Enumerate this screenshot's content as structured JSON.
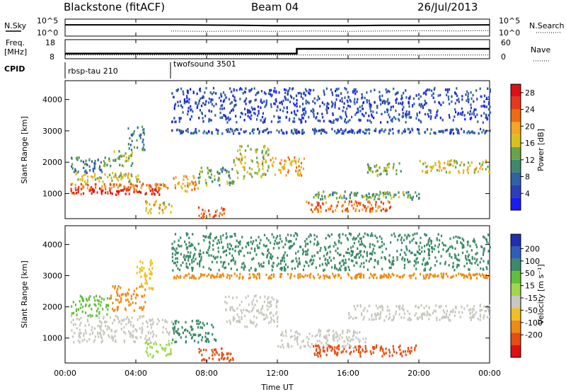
{
  "header": {
    "station": "Blackstone (fitACF)",
    "beam": "Beam 04",
    "date": "26/Jul/2013"
  },
  "top_panel": {
    "nsky_label": "N.Sky",
    "nsky_ticks": [
      "10^5",
      "10^0"
    ],
    "nsearch_label": "N.Search",
    "nsearch_ticks": [
      "10^5",
      "10^0"
    ]
  },
  "freq_panel": {
    "freq_label": "Freq.",
    "freq_unit": "[MHz]",
    "freq_ticks": [
      "18",
      "8"
    ],
    "nave_label": "Nave",
    "nave_ticks": [
      "60",
      "0"
    ]
  },
  "cpid": {
    "label": "CPID",
    "modes": [
      {
        "name": "rbsp-tau 210",
        "start_hour": 0
      },
      {
        "name": "twofsound 3501",
        "start_hour": 5.9
      }
    ]
  },
  "colors": {
    "power": [
      "#1a1aff",
      "#2a3fb8",
      "#2f62a6",
      "#3f8870",
      "#6aa34a",
      "#d6c21a",
      "#f5a623",
      "#ee6b12",
      "#e8381a",
      "#e01010"
    ],
    "velocity": [
      "#1f2fb3",
      "#2e5fb8",
      "#3c8a6a",
      "#5fbf3a",
      "#9fd64a",
      "#c8c8c0",
      "#f0c020",
      "#f08a12",
      "#e84c12",
      "#e01010"
    ]
  },
  "chart_data": [
    {
      "type": "line",
      "title": "N.Sky / N.Search",
      "x_range_hours": [
        0,
        24
      ],
      "y_scale": "log",
      "y_ticks": [
        "10^0",
        "10^5"
      ],
      "series": [
        {
          "name": "N.Sky",
          "x": [
            0,
            2,
            4,
            6,
            8,
            10,
            12,
            14,
            16,
            18,
            20,
            22,
            24
          ],
          "y": [
            3000,
            3000,
            3000,
            3000,
            2500,
            2000,
            1500,
            1500,
            1500,
            2000,
            2000,
            2500,
            3000
          ]
        },
        {
          "name": "N.Search",
          "x": [
            6,
            8,
            10,
            12,
            14,
            16,
            18,
            20,
            22,
            24
          ],
          "y": [
            20,
            15,
            20,
            15,
            20,
            15,
            20,
            25,
            20,
            30
          ]
        }
      ]
    },
    {
      "type": "line",
      "title": "Freq / Nave",
      "x_range_hours": [
        0,
        24
      ],
      "series": [
        {
          "name": "Freq. [MHz]",
          "x": [
            0,
            13.1,
            13.1,
            24
          ],
          "y": [
            10.5,
            10.5,
            13.2,
            13.2
          ]
        },
        {
          "name": "Nave",
          "x": [
            0,
            24
          ],
          "y": [
            10,
            10
          ]
        }
      ],
      "ylim_left": [
        8,
        18
      ],
      "ylim_right": [
        0,
        60
      ]
    },
    {
      "type": "heatmap",
      "title": "Power",
      "xlabel": "",
      "ylabel": "Slant Range [km]",
      "x_range_hours": [
        0,
        24
      ],
      "ylim": [
        200,
        4600
      ],
      "y_ticks": [
        1000,
        2000,
        3000,
        4000
      ],
      "colorbar_label": "Power [dB]",
      "colorbar_ticks": [
        4,
        8,
        12,
        16,
        20,
        24,
        28
      ],
      "colorbar_range": [
        0,
        30
      ],
      "bands": [
        {
          "x": [
            0.3,
            5.5
          ],
          "y": [
            1000,
            1200
          ],
          "value": 27
        },
        {
          "x": [
            0.3,
            5.8
          ],
          "y": [
            1200,
            1350
          ],
          "value": 22
        },
        {
          "x": [
            0.5,
            4.2
          ],
          "y": [
            1400,
            1700
          ],
          "value": 17
        },
        {
          "x": [
            0.3,
            2.2
          ],
          "y": [
            1700,
            2200
          ],
          "value": 9
        },
        {
          "x": [
            2.2,
            3.8
          ],
          "y": [
            1900,
            2400
          ],
          "value": 14
        },
        {
          "x": [
            3.5,
            4.5
          ],
          "y": [
            2400,
            3200
          ],
          "value": 10
        },
        {
          "x": [
            4.5,
            6.0
          ],
          "y": [
            400,
            800
          ],
          "value": 18
        },
        {
          "x": [
            6.0,
            7.5
          ],
          "y": [
            1100,
            1600
          ],
          "value": 20
        },
        {
          "x": [
            7.5,
            9.5
          ],
          "y": [
            1300,
            1900
          ],
          "value": 12
        },
        {
          "x": [
            7.5,
            9.0
          ],
          "y": [
            250,
            600
          ],
          "value": 24
        },
        {
          "x": [
            9.5,
            11.5
          ],
          "y": [
            1500,
            2600
          ],
          "value": 15
        },
        {
          "x": [
            11.5,
            13.5
          ],
          "y": [
            1600,
            2200
          ],
          "value": 19
        },
        {
          "x": [
            13.5,
            18.5
          ],
          "y": [
            450,
            800
          ],
          "value": 23
        },
        {
          "x": [
            14.0,
            20.0
          ],
          "y": [
            850,
            1100
          ],
          "value": 12
        },
        {
          "x": [
            17.0,
            19.0
          ],
          "y": [
            1600,
            2000
          ],
          "value": 14
        },
        {
          "x": [
            20.0,
            24.0
          ],
          "y": [
            1700,
            2100
          ],
          "value": 17
        },
        {
          "x": [
            6.0,
            24.0
          ],
          "y": [
            2950,
            3100
          ],
          "value": 6
        },
        {
          "x": [
            6.0,
            24.0
          ],
          "y": [
            3300,
            4400
          ],
          "value": 5
        }
      ]
    },
    {
      "type": "heatmap",
      "title": "Velocity",
      "xlabel": "Time UT",
      "ylabel": "Slant Range [km]",
      "x_range_hours": [
        0,
        24
      ],
      "x_ticks": [
        "00:00",
        "04:00",
        "08:00",
        "12:00",
        "16:00",
        "20:00",
        "00:00"
      ],
      "ylim": [
        200,
        4600
      ],
      "y_ticks": [
        1000,
        2000,
        3000,
        4000
      ],
      "colorbar_label": "Velocity [m s⁻¹]",
      "colorbar_ticks": [
        200,
        100,
        50,
        15,
        -15,
        -50,
        -100,
        -200
      ],
      "bands": [
        {
          "x": [
            0.3,
            6.0
          ],
          "y": [
            900,
            1750
          ],
          "value": 0
        },
        {
          "x": [
            0.3,
            2.5
          ],
          "y": [
            1750,
            2400
          ],
          "value": 60
        },
        {
          "x": [
            2.5,
            4.5
          ],
          "y": [
            1900,
            2700
          ],
          "value": -60
        },
        {
          "x": [
            4.5,
            6.0
          ],
          "y": [
            400,
            900
          ],
          "value": 30
        },
        {
          "x": [
            4.0,
            5.0
          ],
          "y": [
            2600,
            3600
          ],
          "value": -40
        },
        {
          "x": [
            6.0,
            8.5
          ],
          "y": [
            900,
            1600
          ],
          "value": 120
        },
        {
          "x": [
            7.5,
            9.5
          ],
          "y": [
            300,
            700
          ],
          "value": -180
        },
        {
          "x": [
            9.0,
            12.0
          ],
          "y": [
            1400,
            2400
          ],
          "value": 0
        },
        {
          "x": [
            12.0,
            17.0
          ],
          "y": [
            700,
            1300
          ],
          "value": 0
        },
        {
          "x": [
            14.0,
            20.0
          ],
          "y": [
            450,
            800
          ],
          "value": -120
        },
        {
          "x": [
            16.0,
            24.0
          ],
          "y": [
            1600,
            2100
          ],
          "value": 0
        },
        {
          "x": [
            6.0,
            24.0
          ],
          "y": [
            2950,
            3100
          ],
          "value": -80
        },
        {
          "x": [
            6.0,
            24.0
          ],
          "y": [
            3200,
            4400
          ],
          "value": 150
        }
      ]
    }
  ],
  "time_axis": {
    "label": "Time UT",
    "ticks": [
      "00:00",
      "04:00",
      "08:00",
      "12:00",
      "16:00",
      "20:00",
      "00:00"
    ]
  }
}
